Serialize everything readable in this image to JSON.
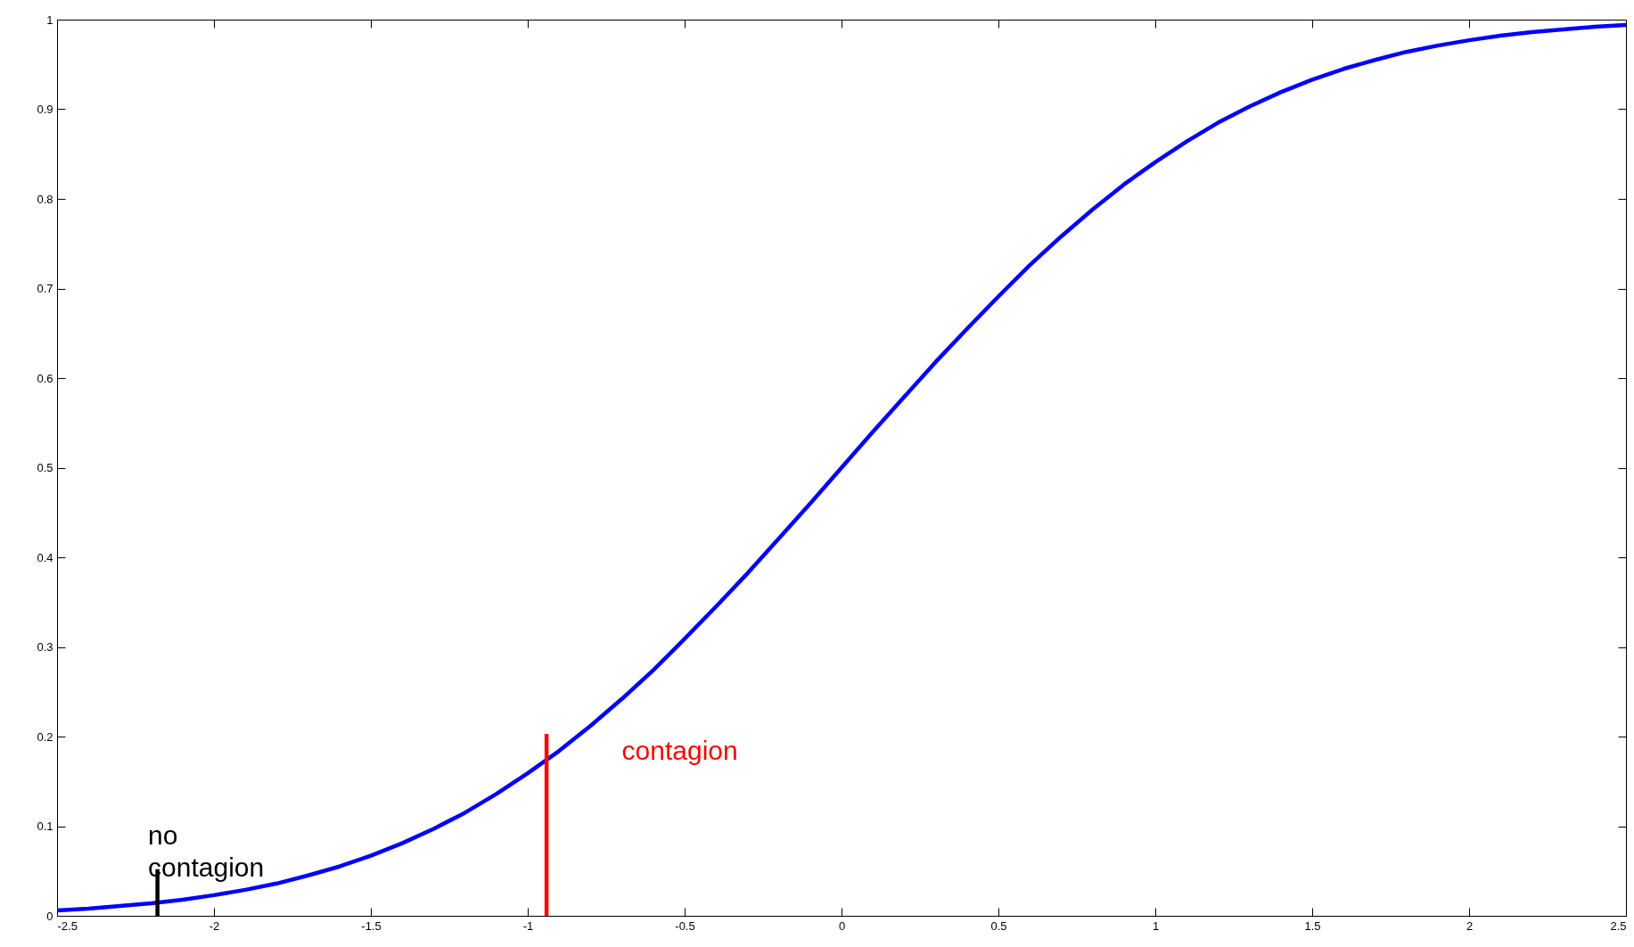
{
  "chart_data": {
    "type": "line",
    "xlim": [
      -2.5,
      2.5
    ],
    "ylim": [
      0,
      1
    ],
    "xticks": [
      -2.5,
      -2,
      -1.5,
      -1,
      -0.5,
      0,
      0.5,
      1,
      1.5,
      2,
      2.5
    ],
    "yticks": [
      0,
      0.1,
      0.2,
      0.3,
      0.4,
      0.5,
      0.6,
      0.7,
      0.8,
      0.9,
      1
    ],
    "grid": false,
    "series": [
      {
        "color": "#0000ff",
        "x": [
          -2.5,
          -2.4,
          -2.3,
          -2.2,
          -2.1,
          -2.0,
          -1.9,
          -1.8,
          -1.7,
          -1.6,
          -1.5,
          -1.4,
          -1.3,
          -1.2,
          -1.1,
          -1.0,
          -0.9,
          -0.8,
          -0.7,
          -0.6,
          -0.5,
          -0.4,
          -0.3,
          -0.2,
          -0.1,
          0,
          0.1,
          0.2,
          0.3,
          0.4,
          0.5,
          0.6,
          0.7,
          0.8,
          0.9,
          1.0,
          1.1,
          1.2,
          1.3,
          1.4,
          1.5,
          1.6,
          1.7,
          1.8,
          1.9,
          2.0,
          2.1,
          2.2,
          2.3,
          2.4,
          2.5
        ],
        "values": [
          0.006,
          0.008,
          0.011,
          0.014,
          0.018,
          0.023,
          0.029,
          0.036,
          0.045,
          0.055,
          0.067,
          0.081,
          0.097,
          0.115,
          0.136,
          0.159,
          0.184,
          0.212,
          0.242,
          0.274,
          0.309,
          0.345,
          0.382,
          0.421,
          0.46,
          0.5,
          0.54,
          0.579,
          0.618,
          0.655,
          0.691,
          0.726,
          0.758,
          0.788,
          0.816,
          0.841,
          0.864,
          0.885,
          0.903,
          0.919,
          0.933,
          0.945,
          0.955,
          0.964,
          0.971,
          0.977,
          0.982,
          0.986,
          0.989,
          0.992,
          0.994
        ]
      },
      {
        "color": "#ff0000",
        "x": [
          -0.94,
          -0.94
        ],
        "values": [
          0,
          0.203
        ]
      },
      {
        "color": "#000000",
        "x": [
          -2.18,
          -2.18
        ],
        "values": [
          0,
          0.052
        ]
      }
    ],
    "annotations": [
      "contagion",
      "no contagion"
    ]
  }
}
